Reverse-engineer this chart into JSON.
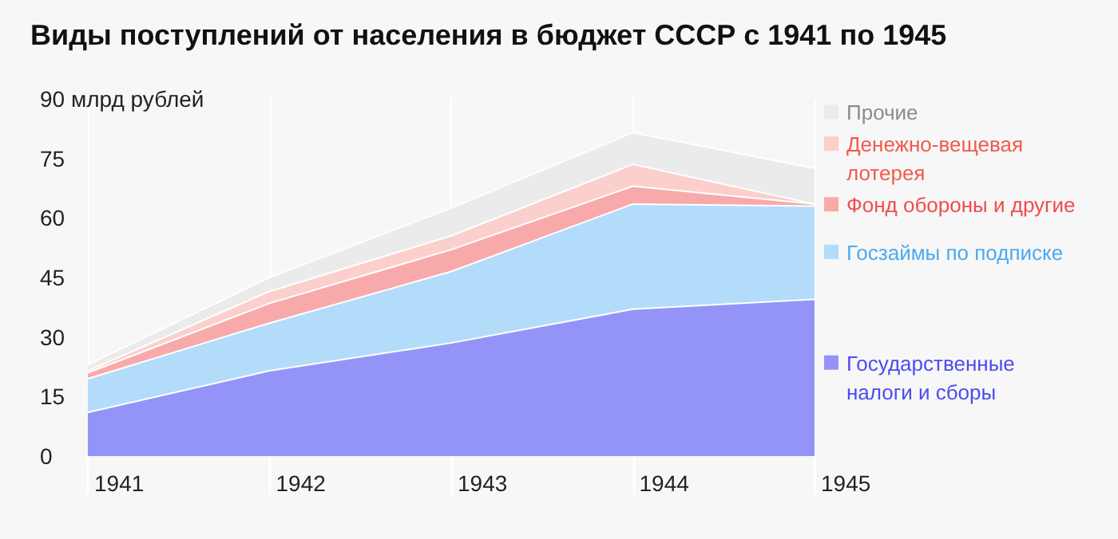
{
  "chart_data": {
    "type": "area",
    "title": "Виды поступлений от населения в бюджет СССР с 1941 по 1945",
    "categories": [
      "1941",
      "1942",
      "1943",
      "1944",
      "1945"
    ],
    "stacked": true,
    "grid": "x",
    "legend": "right",
    "ylim": [
      0,
      90
    ],
    "yticks": [
      0,
      15,
      30,
      45,
      60,
      75,
      {
        "value": 90,
        "label": "90 млрд рублей"
      }
    ],
    "series": [
      {
        "name": "Государственные налоги и сборы",
        "color": "#9494f8",
        "values": [
          11,
          21.5,
          28.5,
          37,
          39.5
        ]
      },
      {
        "name": "Госзаймы по подписке",
        "color": "#b3dcfb",
        "values": [
          8.5,
          12,
          18,
          26.5,
          23.5
        ]
      },
      {
        "name": "Фонд обороны и другие",
        "color": "#f8aaaa",
        "values": [
          1.5,
          5,
          5.5,
          4.5,
          0.5
        ]
      },
      {
        "name": "Денежно-вещевая лотерея",
        "color": "#fbd0cc",
        "values": [
          0.5,
          3,
          3.5,
          5.5,
          0
        ]
      },
      {
        "name": "Прочие",
        "color": "#ebebeb",
        "values": [
          1.5,
          3.5,
          7,
          8,
          9
        ]
      }
    ]
  }
}
